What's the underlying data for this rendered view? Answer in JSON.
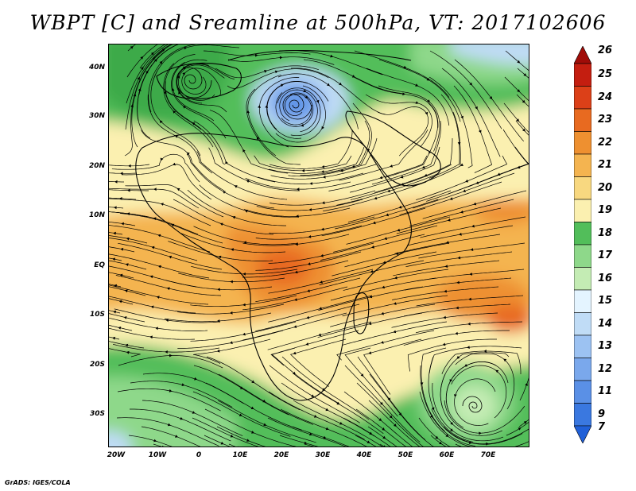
{
  "title": "WBPT [C] and Sreamline at 500hPa, VT: 2017102606",
  "credit": "GrADS: IGES/COLA",
  "map": {
    "lat_ticks": [
      "40N",
      "30N",
      "20N",
      "10N",
      "EQ",
      "10S",
      "20S",
      "30S"
    ],
    "lon_ticks": [
      "20W",
      "10W",
      "0",
      "10E",
      "20E",
      "30E",
      "40E",
      "50E",
      "60E",
      "70E"
    ]
  },
  "colorbar": {
    "labels": [
      "7",
      "9",
      "11",
      "12",
      "13",
      "14",
      "15",
      "16",
      "17",
      "18",
      "19",
      "20",
      "21",
      "22",
      "23",
      "24",
      "25",
      "26"
    ],
    "colors": [
      "#2060d8",
      "#3a78e0",
      "#5a90e6",
      "#7aa8ec",
      "#9cc2f2",
      "#c0dcf6",
      "#e4f4ff",
      "#c4ecb4",
      "#8ed88a",
      "#52be5a",
      "#fbf0b0",
      "#f8d880",
      "#f4b450",
      "#ee9030",
      "#e86a20",
      "#dc4018",
      "#c41e10",
      "#a00c08"
    ]
  }
}
